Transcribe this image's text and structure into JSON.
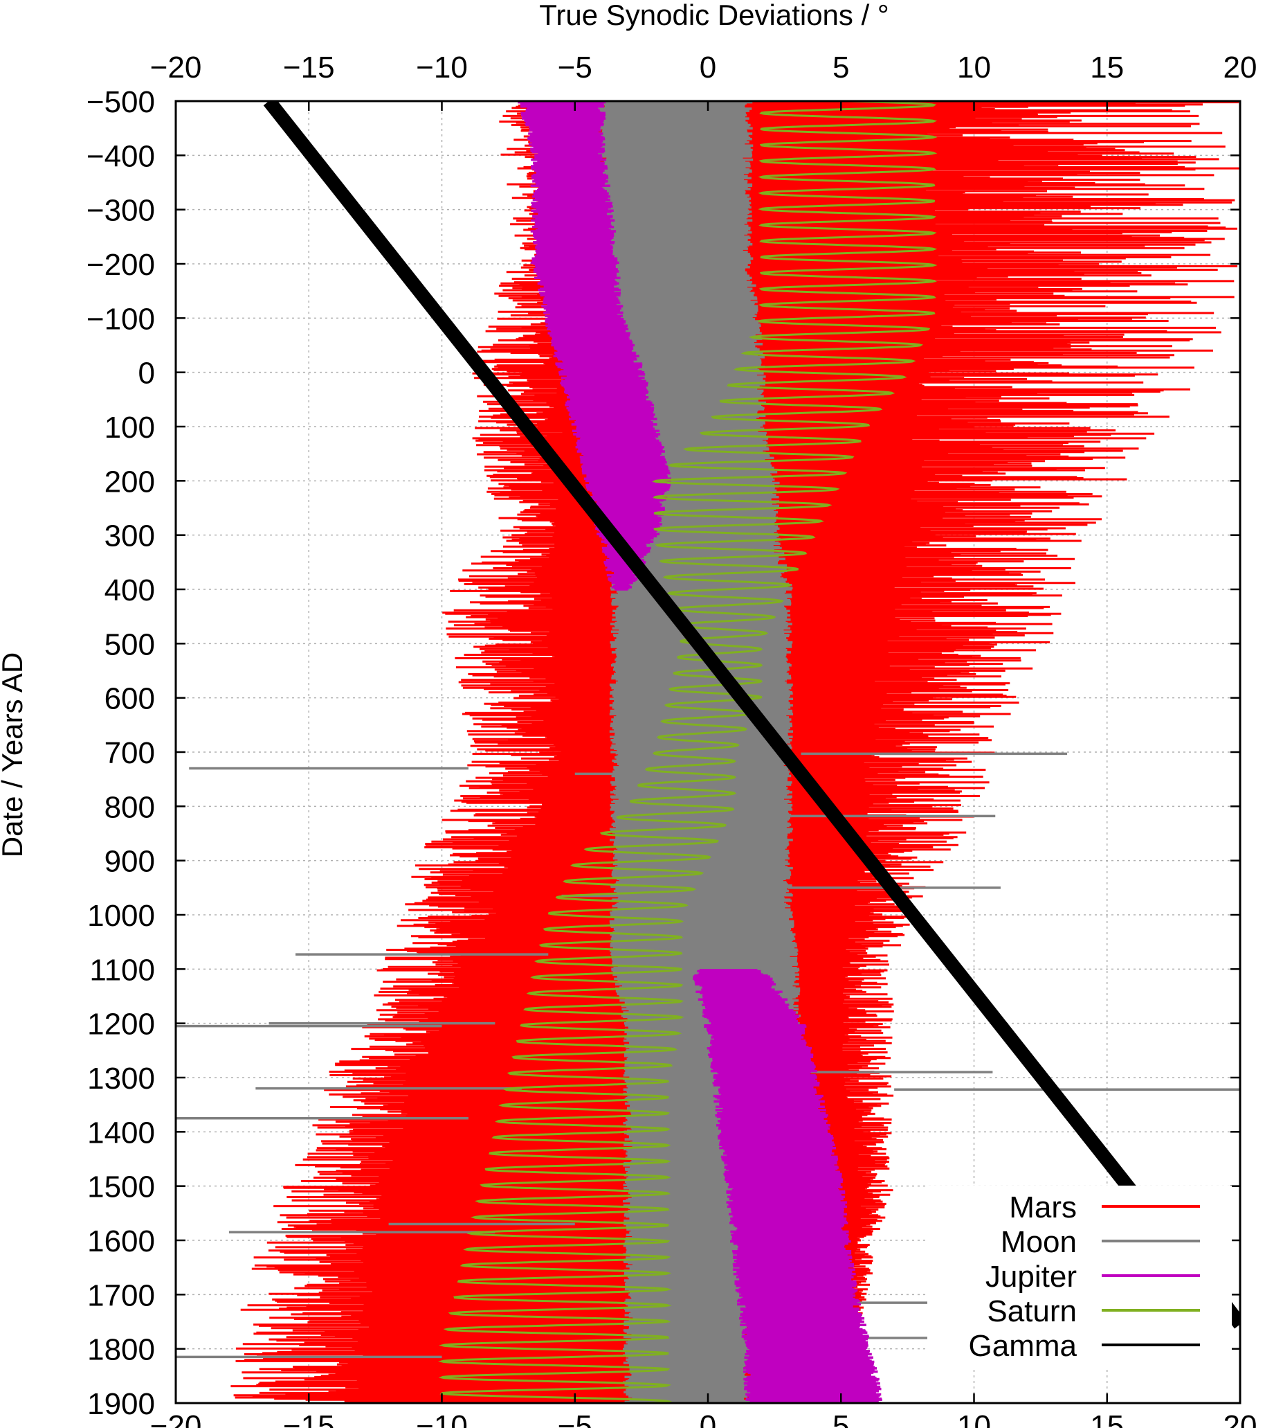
{
  "chart_data": {
    "type": "line",
    "title": "",
    "xlabel": "True Synodic Deviations / °",
    "ylabel": "Date / Years AD",
    "xlim": [
      -20,
      20
    ],
    "ylim": [
      -500,
      1900
    ],
    "y_inverted": true,
    "x_ticks": [
      -20,
      -15,
      -10,
      -5,
      0,
      5,
      10,
      15,
      20
    ],
    "x_tick_labels": [
      "−20",
      "−15",
      "−10",
      "−5",
      "0",
      "5",
      "10",
      "15",
      "20"
    ],
    "y_ticks": [
      -500,
      -400,
      -300,
      -200,
      -100,
      0,
      100,
      200,
      300,
      400,
      500,
      600,
      700,
      800,
      900,
      1000,
      1100,
      1200,
      1300,
      1400,
      1500,
      1600,
      1700,
      1800,
      1900
    ],
    "y_tick_labels": [
      "−500",
      "−400",
      "−300",
      "−200",
      "−100",
      "0",
      "100",
      "200",
      "300",
      "400",
      "500",
      "600",
      "700",
      "800",
      "900",
      "1000",
      "1100",
      "1200",
      "1300",
      "1400",
      "1500",
      "1600",
      "1700",
      "1800",
      "1900"
    ],
    "grid": true,
    "mirror_ticks": true,
    "legend_position": "bottom-right",
    "series_band_edges_note_free": true,
    "series": [
      {
        "name": "Mars",
        "color": "#ff0000",
        "date": [
          -500,
          -400,
          -300,
          -200,
          -100,
          0,
          100,
          200,
          300,
          400,
          500,
          600,
          700,
          800,
          900,
          1000,
          1100,
          1200,
          1300,
          1400,
          1500,
          1600,
          1700,
          1800,
          1900
        ],
        "min": [
          -8,
          -7.8,
          -7.5,
          -7.5,
          -8.5,
          -9,
          -9,
          -8.5,
          -8,
          -10,
          -10,
          -9.5,
          -9,
          -10,
          -11,
          -11.5,
          -12.5,
          -13,
          -14.5,
          -15,
          -16,
          -17,
          -17.5,
          -18,
          -18
        ],
        "max": [
          20,
          20,
          20,
          20,
          20,
          19,
          17,
          16,
          15,
          14,
          13,
          12,
          11,
          10.5,
          9,
          8,
          7,
          7,
          7,
          7,
          7,
          6.5,
          6,
          5.5,
          4
        ],
        "inner_left": [
          -3.5,
          -3.5,
          -3.5,
          -3.5,
          -3.5,
          -3.5,
          -3.5,
          -4,
          -4.5,
          -3.5,
          -3.5,
          -3.5,
          -3.5,
          -4,
          -5,
          -6,
          -7,
          -8,
          -9,
          -9.5,
          -10,
          -10,
          -10,
          -10,
          -10
        ],
        "inner_right": [
          1.5,
          1.5,
          1.8,
          1.8,
          2,
          2,
          2.5,
          3,
          3.5,
          3,
          3,
          3,
          3,
          3.5,
          4,
          4,
          4,
          4,
          4,
          4.5,
          5,
          5,
          5,
          5,
          5
        ]
      },
      {
        "name": "Moon",
        "color": "#808080",
        "date": [
          -500,
          -400,
          -300,
          -200,
          -100,
          0,
          100,
          200,
          300,
          400,
          500,
          600,
          700,
          800,
          900,
          1000,
          1100,
          1200,
          1300,
          1400,
          1500,
          1600,
          1700,
          1800,
          1900
        ],
        "min": [
          -4,
          -4,
          -4,
          -4,
          -3.5,
          -3.5,
          -2.5,
          -1.5,
          -2.5,
          -3.5,
          -3.5,
          -3.5,
          -3.5,
          -3.5,
          -3.5,
          -3.5,
          -3.5,
          -3,
          -3,
          -3,
          -3,
          -3,
          -3,
          -3,
          -3
        ],
        "max": [
          1.5,
          1.5,
          1.5,
          1.5,
          1.8,
          2,
          2,
          2.5,
          2.5,
          3,
          3,
          3,
          3,
          3,
          3,
          3,
          3.3,
          3.3,
          2.5,
          2,
          1.8,
          1.5,
          1.5,
          1.5,
          1.5
        ],
        "outliers": [
          {
            "date": 703,
            "min": 3.5,
            "max": 13.5
          },
          {
            "date": 730,
            "min": -19.5,
            "max": -9
          },
          {
            "date": 740,
            "min": -5,
            "max": 0
          },
          {
            "date": 818,
            "min": 3,
            "max": 10.8
          },
          {
            "date": 950,
            "min": 3,
            "max": 11
          },
          {
            "date": 965,
            "min": -5.5,
            "max": 0
          },
          {
            "date": 1073,
            "min": -15.5,
            "max": -6
          },
          {
            "date": 1200,
            "min": -16.5,
            "max": -8
          },
          {
            "date": 1205,
            "min": -20,
            "max": -10
          },
          {
            "date": 1290,
            "min": 3.5,
            "max": 10.7
          },
          {
            "date": 1320,
            "min": -17,
            "max": -7
          },
          {
            "date": 1322,
            "min": 7,
            "max": 20
          },
          {
            "date": 1375,
            "min": -20,
            "max": -9
          },
          {
            "date": 1570,
            "min": -12,
            "max": -5
          },
          {
            "date": 1585,
            "min": -18,
            "max": -8
          },
          {
            "date": 1715,
            "min": 5,
            "max": 8.3
          },
          {
            "date": 1780,
            "min": 5,
            "max": 8.3
          },
          {
            "date": 1815,
            "min": -20,
            "max": -10
          }
        ]
      },
      {
        "name": "Jupiter",
        "color": "#c000c0",
        "date": [
          -500,
          -400,
          -300,
          -200,
          -100,
          0,
          100,
          200,
          300,
          400,
          500,
          600,
          700,
          800,
          900,
          1000,
          1100,
          1200,
          1300,
          1400,
          1500,
          1600,
          1700,
          1800,
          1900
        ],
        "min": [
          -7,
          -6.5,
          -6.5,
          -6.5,
          -6,
          -5.5,
          -5,
          -4.5,
          -4,
          -3.5,
          null,
          null,
          null,
          null,
          null,
          null,
          -0.5,
          0,
          0.3,
          0.5,
          0.8,
          1,
          1.2,
          1.5,
          1.5
        ],
        "max": [
          -4,
          -4,
          -3.7,
          -3.5,
          -3.3,
          -2.5,
          -2,
          -1.5,
          -2,
          -3,
          null,
          null,
          null,
          null,
          null,
          null,
          2,
          3.5,
          4,
          4.5,
          5,
          5.2,
          5.5,
          6,
          6.5
        ]
      },
      {
        "name": "Saturn",
        "color": "#80b020",
        "date": [
          -500,
          -400,
          -300,
          -200,
          -100,
          0,
          100,
          200,
          300,
          400,
          500,
          600,
          700,
          800,
          900,
          1000,
          1100,
          1200,
          1300,
          1400,
          1500,
          1600,
          1700,
          1800,
          1900
        ],
        "min": [
          2,
          2,
          2,
          2,
          2,
          1,
          0,
          -2,
          -2,
          -1.5,
          -1,
          -1.5,
          -2,
          -3,
          -5,
          -6,
          -6.5,
          -7,
          -7.5,
          -8,
          -8.5,
          -9,
          -9.5,
          -10,
          -10
        ],
        "max": [
          8.5,
          8.5,
          8.5,
          8.5,
          8.5,
          7.5,
          6,
          5,
          4,
          3,
          2,
          2,
          1,
          1,
          0,
          -1,
          -1,
          -1,
          -1.5,
          -1.5,
          -1.5,
          -1.5,
          -1.5,
          -1.5,
          -1.5
        ]
      },
      {
        "name": "Gamma",
        "color": "#000000",
        "line": {
          "start": {
            "x": -16.5,
            "date": -500
          },
          "end": {
            "x": 16.5,
            "date": 1545
          }
        },
        "wrap": {
          "start": {
            "x": 19,
            "date": 1690
          },
          "end": {
            "x": 20,
            "date": 1755
          }
        }
      }
    ]
  }
}
